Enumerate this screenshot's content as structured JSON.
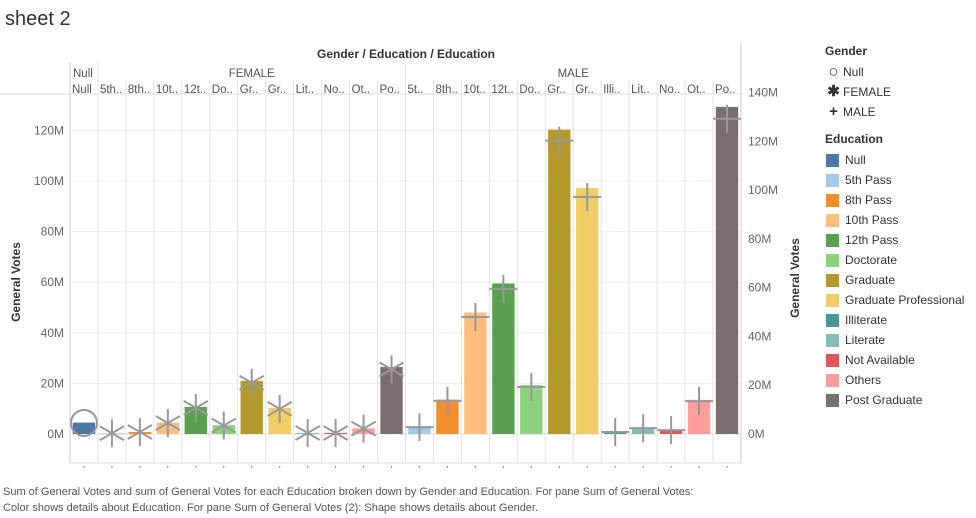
{
  "sheet_title": "sheet 2",
  "header_title": "Gender / Education / Education",
  "gender_groups": [
    {
      "label": "Null",
      "columns": [
        "Null"
      ]
    },
    {
      "label": "FEMALE",
      "columns": [
        "5th..",
        "8th..",
        "10t..",
        "12t..",
        "Do..",
        "Gr..",
        "Gr..",
        "Lit..",
        "No..",
        "Ot..",
        "Po.."
      ]
    },
    {
      "label": "MALE",
      "columns": [
        "5t..",
        "8th..",
        "10t..",
        "12t..",
        "Do..",
        "Gr..",
        "Gr..",
        "Illi..",
        "Lit..",
        "No..",
        "Ot..",
        "Po.."
      ]
    }
  ],
  "chart_data": {
    "type": "bar",
    "y_axis_left": {
      "title": "General Votes",
      "ticks": [
        "0M",
        "20M",
        "40M",
        "60M",
        "80M",
        "100M",
        "120M"
      ],
      "range": [
        0,
        133
      ]
    },
    "y_axis_right": {
      "title": "General Votes",
      "ticks": [
        "0M",
        "20M",
        "40M",
        "60M",
        "80M",
        "100M",
        "120M",
        "140M"
      ],
      "range": [
        0,
        138
      ]
    },
    "categories": [
      "Null",
      "FEMALE 5th Pass",
      "FEMALE 8th Pass",
      "FEMALE 10th Pass",
      "FEMALE 12th Pass",
      "FEMALE Doctorate",
      "FEMALE Graduate",
      "FEMALE Graduate Professional",
      "FEMALE Literate",
      "FEMALE Not Available",
      "FEMALE Others",
      "FEMALE Post Graduate",
      "MALE 5th Pass",
      "MALE 8th Pass",
      "MALE 10th Pass",
      "MALE 12th Pass",
      "MALE Doctorate",
      "MALE Graduate",
      "MALE Graduate Professional",
      "MALE Illiterate",
      "MALE Literate",
      "MALE Not Available",
      "MALE Others",
      "MALE Post Graduate"
    ],
    "values": [
      4.5,
      0.3,
      0.8,
      4.5,
      10.7,
      3.5,
      21.0,
      10.3,
      0.4,
      0.4,
      2.2,
      26.5,
      2.8,
      13.6,
      48.0,
      59.5,
      19.3,
      120.3,
      97.2,
      0.8,
      2.4,
      1.6,
      13.5,
      129.3
    ],
    "gender": [
      "Null",
      "FEMALE",
      "FEMALE",
      "FEMALE",
      "FEMALE",
      "FEMALE",
      "FEMALE",
      "FEMALE",
      "FEMALE",
      "FEMALE",
      "FEMALE",
      "FEMALE",
      "MALE",
      "MALE",
      "MALE",
      "MALE",
      "MALE",
      "MALE",
      "MALE",
      "MALE",
      "MALE",
      "MALE",
      "MALE",
      "MALE"
    ],
    "education": [
      "Null",
      "5th Pass",
      "8th Pass",
      "10th Pass",
      "12th Pass",
      "Doctorate",
      "Graduate",
      "Graduate Professional",
      "Literate",
      "Not Available",
      "Others",
      "Post Graduate",
      "5th Pass",
      "8th Pass",
      "10th Pass",
      "12th Pass",
      "Doctorate",
      "Graduate",
      "Graduate Professional",
      "Illiterate",
      "Literate",
      "Not Available",
      "Others",
      "Post Graduate"
    ]
  },
  "legend": {
    "gender_title": "Gender",
    "gender_items": [
      {
        "label": "Null",
        "shape": "circle"
      },
      {
        "label": "FEMALE",
        "shape": "asterisk"
      },
      {
        "label": "MALE",
        "shape": "plus"
      }
    ],
    "education_title": "Education",
    "education_items": [
      {
        "label": "Null",
        "color": "#4e79a7"
      },
      {
        "label": "5th Pass",
        "color": "#a0cbe8"
      },
      {
        "label": "8th Pass",
        "color": "#f28e2b"
      },
      {
        "label": "10th Pass",
        "color": "#ffbe7d"
      },
      {
        "label": "12th Pass",
        "color": "#59a14f"
      },
      {
        "label": "Doctorate",
        "color": "#8cd17d"
      },
      {
        "label": "Graduate",
        "color": "#b6992d"
      },
      {
        "label": "Graduate Professional",
        "color": "#f1ce63"
      },
      {
        "label": "Illiterate",
        "color": "#499894"
      },
      {
        "label": "Literate",
        "color": "#86bcb6"
      },
      {
        "label": "Not Available",
        "color": "#e15759"
      },
      {
        "label": "Others",
        "color": "#ff9d9a"
      },
      {
        "label": "Post Graduate",
        "color": "#79706e"
      }
    ]
  },
  "caption": {
    "line1": "Sum of General Votes and sum of General Votes for each Education broken down by Gender and Education.  For pane Sum of General Votes:",
    "line2": "Color shows details about Education.  For pane Sum of General Votes (2):  Shape shows details about Gender."
  }
}
